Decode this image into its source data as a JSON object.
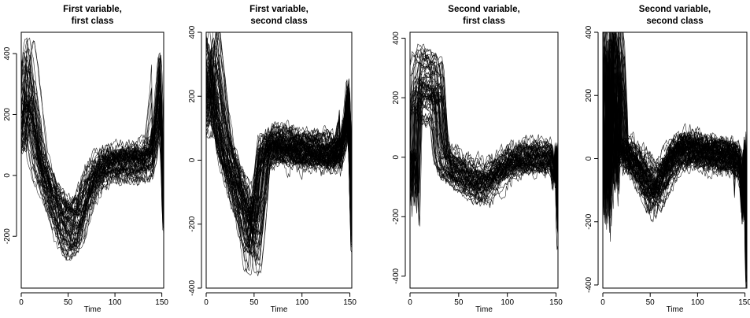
{
  "chart_data": [
    {
      "type": "line",
      "title": [
        "First variable,",
        "first class"
      ],
      "xlabel": "Time",
      "ylabel": "",
      "xlim": [
        0,
        152
      ],
      "ylim": [
        -370,
        470
      ],
      "xticks": [
        0,
        50,
        100,
        150
      ],
      "yticks": [
        -200,
        0,
        200,
        400
      ],
      "grid": false,
      "legend": "none",
      "series_count": 60,
      "mean_profile": {
        "x": [
          0,
          3,
          6,
          10,
          15,
          20,
          30,
          40,
          50,
          60,
          70,
          80,
          90,
          100,
          110,
          120,
          130,
          140,
          145,
          148,
          150,
          152
        ],
        "y": [
          150,
          280,
          320,
          260,
          150,
          40,
          -60,
          -150,
          -200,
          -180,
          -80,
          0,
          30,
          40,
          40,
          45,
          50,
          70,
          200,
          300,
          150,
          -150
        ]
      }
    },
    {
      "type": "line",
      "title": [
        "First variable,",
        "second class"
      ],
      "xlabel": "Time",
      "ylabel": "",
      "xlim": [
        0,
        152
      ],
      "ylim": [
        -400,
        400
      ],
      "xticks": [
        0,
        50,
        100,
        150
      ],
      "yticks": [
        -400,
        -200,
        0,
        200,
        400
      ],
      "grid": false,
      "legend": "none",
      "series_count": 80,
      "mean_profile": {
        "x": [
          0,
          3,
          6,
          10,
          15,
          20,
          30,
          40,
          45,
          50,
          55,
          60,
          70,
          80,
          90,
          100,
          110,
          120,
          130,
          140,
          145,
          148,
          150,
          152
        ],
        "y": [
          150,
          260,
          300,
          220,
          120,
          30,
          -60,
          -150,
          -220,
          -230,
          -120,
          20,
          50,
          45,
          40,
          35,
          30,
          30,
          20,
          20,
          100,
          180,
          50,
          -200
        ]
      }
    },
    {
      "type": "line",
      "title": [
        "Second variable,",
        "first class"
      ],
      "xlabel": "Time",
      "ylabel": "",
      "xlim": [
        0,
        152
      ],
      "ylim": [
        -440,
        420
      ],
      "xticks": [
        0,
        50,
        100,
        150
      ],
      "yticks": [
        -400,
        -200,
        0,
        200,
        400
      ],
      "grid": false,
      "legend": "none",
      "series_count": 60,
      "mean_profile": {
        "x": [
          0,
          2,
          5,
          10,
          20,
          28,
          32,
          36,
          45,
          55,
          65,
          75,
          85,
          100,
          120,
          140,
          145,
          148,
          150,
          152
        ],
        "y": [
          0,
          -150,
          200,
          250,
          230,
          220,
          40,
          -20,
          -40,
          -60,
          -80,
          -90,
          -60,
          -20,
          0,
          0,
          0,
          -60,
          30,
          -200
        ]
      }
    },
    {
      "type": "line",
      "title": [
        "Second variable,",
        "second class"
      ],
      "xlabel": "Time",
      "ylabel": "",
      "xlim": [
        0,
        152
      ],
      "ylim": [
        -410,
        400
      ],
      "xticks": [
        0,
        50,
        100,
        150
      ],
      "yticks": [
        -400,
        -200,
        0,
        200,
        400
      ],
      "grid": false,
      "legend": "none",
      "series_count": 80,
      "mean_profile": {
        "x": [
          0,
          2,
          4,
          6,
          8,
          10,
          12,
          14,
          16,
          18,
          20,
          24,
          30,
          40,
          50,
          55,
          60,
          70,
          80,
          90,
          100,
          120,
          140,
          145,
          148,
          150,
          152
        ],
        "y": [
          0,
          -200,
          300,
          280,
          20,
          -100,
          200,
          330,
          300,
          200,
          0,
          20,
          0,
          -40,
          -90,
          -110,
          -80,
          -20,
          20,
          30,
          20,
          10,
          0,
          -20,
          -150,
          50,
          -300
        ]
      }
    }
  ]
}
